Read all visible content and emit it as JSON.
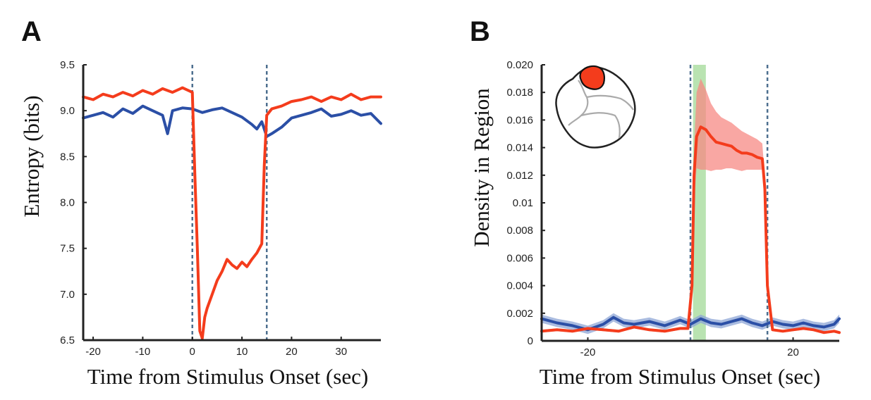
{
  "figure": {
    "colors": {
      "red": "#f43c1c",
      "blue": "#2b4fa6",
      "red_band": "#f78a84",
      "blue_band": "#8ea6d6",
      "green_band": "#b9e3b1",
      "dashed": "#4d6f8f",
      "axis": "#222222",
      "brain_fill": "#f43c1c",
      "brain_outline": "#222222",
      "brain_lines": "#aaaaaa"
    }
  },
  "chart_data": [
    {
      "panel_label": "A",
      "type": "line",
      "xlabel": "Time from Stimulus Onset (sec)",
      "ylabel": "Entropy (bits)",
      "xlim": [
        -22,
        38
      ],
      "ylim": [
        6.5,
        9.5
      ],
      "x_ticks": [
        -20,
        -10,
        0,
        10,
        20,
        30
      ],
      "x_tick_labels": [
        "-20",
        "-10",
        "0",
        "10",
        "20",
        "30"
      ],
      "y_ticks": [
        6.5,
        7.0,
        7.5,
        8.0,
        8.5,
        9.0,
        9.5
      ],
      "y_tick_labels": [
        "6.5",
        "7.0",
        "7.5",
        "8.0",
        "8.5",
        "9.0",
        "9.5"
      ],
      "vlines": [
        0,
        15
      ],
      "series": [
        {
          "color": "red",
          "x": [
            -22,
            -20,
            -18,
            -16,
            -14,
            -12,
            -10,
            -8,
            -6,
            -4,
            -2,
            0,
            0.5,
            1,
            1.5,
            2,
            2.5,
            3,
            4,
            5,
            6,
            7,
            8,
            9,
            10,
            11,
            12,
            13,
            14,
            14.5,
            15,
            16,
            18,
            20,
            22,
            24,
            26,
            28,
            30,
            32,
            34,
            36,
            38
          ],
          "y": [
            9.15,
            9.12,
            9.18,
            9.15,
            9.2,
            9.16,
            9.22,
            9.18,
            9.24,
            9.2,
            9.25,
            9.2,
            8.3,
            7.5,
            6.6,
            6.52,
            6.75,
            6.85,
            7.0,
            7.15,
            7.25,
            7.38,
            7.32,
            7.28,
            7.35,
            7.3,
            7.38,
            7.45,
            7.55,
            8.4,
            8.95,
            9.02,
            9.05,
            9.1,
            9.12,
            9.15,
            9.1,
            9.15,
            9.12,
            9.18,
            9.12,
            9.15,
            9.15
          ]
        },
        {
          "color": "blue",
          "x": [
            -22,
            -20,
            -18,
            -16,
            -14,
            -12,
            -10,
            -8,
            -6,
            -5,
            -4,
            -2,
            0,
            2,
            4,
            6,
            8,
            10,
            12,
            13,
            14,
            15,
            16,
            18,
            20,
            22,
            24,
            26,
            28,
            30,
            32,
            34,
            36,
            38
          ],
          "y": [
            8.92,
            8.95,
            8.98,
            8.93,
            9.02,
            8.97,
            9.05,
            9.0,
            8.95,
            8.75,
            9.0,
            9.03,
            9.02,
            8.98,
            9.01,
            9.03,
            8.98,
            8.93,
            8.85,
            8.8,
            8.88,
            8.72,
            8.75,
            8.82,
            8.92,
            8.95,
            8.98,
            9.02,
            8.94,
            8.96,
            9.0,
            8.95,
            8.97,
            8.86
          ]
        }
      ]
    },
    {
      "panel_label": "B",
      "type": "line",
      "xlabel": "Time from Stimulus Onset (sec)",
      "ylabel": "Density in Region",
      "xlim": [
        -29,
        29
      ],
      "ylim": [
        0,
        0.02
      ],
      "x_ticks": [
        -20,
        20
      ],
      "x_tick_labels": [
        "-20",
        "20"
      ],
      "y_ticks": [
        0,
        0.002,
        0.004,
        0.006,
        0.008,
        0.01,
        0.012,
        0.014,
        0.016,
        0.018,
        0.02
      ],
      "y_tick_labels": [
        "0",
        "0.002",
        "0.004",
        "0.006",
        "0.008",
        "0.01",
        "0.012",
        "0.014",
        "0.016",
        "0.018",
        "0.020"
      ],
      "vlines": [
        0,
        15
      ],
      "highlight_span": [
        0.5,
        3
      ],
      "series": [
        {
          "color": "red",
          "x": [
            -29,
            -26,
            -23,
            -20,
            -17,
            -14,
            -11,
            -8,
            -5,
            -2,
            -0.5,
            0.3,
            0.7,
            1.2,
            2,
            3,
            4,
            5,
            6,
            7,
            8,
            9,
            10,
            11,
            12,
            13,
            14,
            14.5,
            15,
            16,
            18,
            20,
            22,
            24,
            26,
            28,
            29
          ],
          "y": [
            0.0007,
            0.0008,
            0.0007,
            0.0009,
            0.0008,
            0.0007,
            0.001,
            0.0008,
            0.0007,
            0.0009,
            0.0009,
            0.004,
            0.012,
            0.0148,
            0.0155,
            0.0153,
            0.0148,
            0.0144,
            0.0143,
            0.0142,
            0.0141,
            0.0138,
            0.0136,
            0.0136,
            0.0135,
            0.0133,
            0.0132,
            0.011,
            0.004,
            0.0008,
            0.0007,
            0.0008,
            0.0009,
            0.0008,
            0.0006,
            0.0007,
            0.0006
          ],
          "band_lower": [
            0.0006,
            0.0007,
            0.0006,
            0.0008,
            0.0007,
            0.0006,
            0.0009,
            0.0007,
            0.0006,
            0.0008,
            0.0008,
            0.0035,
            0.01,
            0.0125,
            0.0124,
            0.0124,
            0.0123,
            0.0124,
            0.0124,
            0.0125,
            0.0125,
            0.0124,
            0.0123,
            0.0124,
            0.0124,
            0.0124,
            0.0124,
            0.0105,
            0.0035,
            0.0007,
            0.0006,
            0.0007,
            0.0008,
            0.0007,
            0.0005,
            0.0006,
            0.0005
          ],
          "band_upper": [
            0.0008,
            0.0009,
            0.0008,
            0.001,
            0.0009,
            0.0008,
            0.0011,
            0.0009,
            0.0008,
            0.001,
            0.001,
            0.0045,
            0.014,
            0.018,
            0.019,
            0.0182,
            0.0172,
            0.0166,
            0.0162,
            0.016,
            0.0158,
            0.0155,
            0.0152,
            0.015,
            0.0148,
            0.0146,
            0.0143,
            0.0118,
            0.0045,
            0.0009,
            0.0008,
            0.0009,
            0.001,
            0.0009,
            0.0007,
            0.0008,
            0.0007
          ]
        },
        {
          "color": "blue",
          "x": [
            -29,
            -26,
            -23,
            -20,
            -17,
            -15,
            -13,
            -11,
            -8,
            -5,
            -2,
            0,
            2,
            4,
            6,
            8,
            10,
            12,
            14,
            16,
            18,
            20,
            22,
            24,
            26,
            28,
            29
          ],
          "y": [
            0.0016,
            0.0013,
            0.0011,
            0.0008,
            0.0012,
            0.0017,
            0.0013,
            0.0012,
            0.0014,
            0.0011,
            0.0015,
            0.0012,
            0.0016,
            0.0013,
            0.0012,
            0.0014,
            0.0016,
            0.0013,
            0.0011,
            0.0014,
            0.0012,
            0.0011,
            0.0013,
            0.0011,
            0.001,
            0.0012,
            0.0016
          ],
          "band_lower": [
            0.0013,
            0.001,
            0.0008,
            0.0005,
            0.0009,
            0.0014,
            0.001,
            0.0009,
            0.0011,
            0.0008,
            0.0012,
            0.0009,
            0.0013,
            0.001,
            0.0009,
            0.0011,
            0.0013,
            0.001,
            0.0008,
            0.0011,
            0.0009,
            0.0008,
            0.001,
            0.0008,
            0.0007,
            0.0009,
            0.0013
          ],
          "band_upper": [
            0.0019,
            0.0016,
            0.0014,
            0.0011,
            0.0015,
            0.002,
            0.0016,
            0.0015,
            0.0017,
            0.0014,
            0.0018,
            0.0015,
            0.0019,
            0.0016,
            0.0015,
            0.0017,
            0.0019,
            0.0016,
            0.0014,
            0.0017,
            0.0015,
            0.0014,
            0.0016,
            0.0014,
            0.0013,
            0.0015,
            0.0019
          ]
        }
      ]
    }
  ]
}
